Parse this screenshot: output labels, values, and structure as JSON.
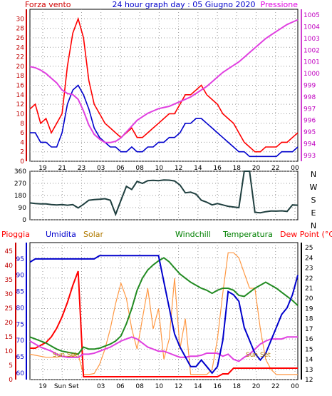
{
  "chart_data": [
    {
      "type": "line",
      "title": "24 hour graph day : 05 Giugno 2020",
      "left_axis_label": "Forza vento",
      "right_axis_label": "Pressione",
      "x_tick_labels": [
        "19",
        "21",
        "23",
        "03",
        "06",
        "08",
        "10",
        "12",
        "14",
        "16",
        "18",
        "20",
        "22",
        "00"
      ],
      "x": [
        0,
        2,
        4,
        6,
        8,
        10,
        12,
        14,
        16,
        18,
        20,
        22,
        24,
        26,
        28,
        30,
        32,
        34,
        36,
        38,
        40,
        42,
        44,
        46,
        48,
        50,
        52,
        54,
        56,
        58,
        60,
        62,
        64,
        66,
        68,
        70,
        72,
        74,
        76,
        78,
        80,
        82,
        84,
        86,
        88,
        90,
        92,
        94,
        96,
        98,
        100
      ],
      "ylim_left": [
        0,
        32
      ],
      "y_ticks_left": [
        0,
        2,
        4,
        6,
        8,
        10,
        12,
        14,
        16,
        18,
        20,
        22,
        24,
        26,
        28,
        30
      ],
      "ylim_right": [
        992.5,
        1005.5
      ],
      "y_ticks_right": [
        993,
        994,
        995,
        996,
        997,
        998,
        999,
        1000,
        1001,
        1002,
        1003,
        1004,
        1005
      ],
      "colors": {
        "gust": "#ff0000",
        "wind": "#0000cc",
        "pressure": "#e040e0"
      },
      "series": [
        {
          "key": "gust",
          "axis": "left",
          "values": [
            11,
            12,
            8,
            9,
            6,
            8,
            10,
            20,
            27,
            30,
            26,
            17,
            12,
            10,
            8,
            7,
            6,
            5,
            6,
            7,
            5,
            5,
            6,
            7,
            8,
            9,
            10,
            10,
            12,
            14,
            14,
            15,
            16,
            14,
            13,
            12,
            10,
            9,
            8,
            6,
            4,
            3,
            2,
            2,
            3,
            3,
            3,
            4,
            4,
            5,
            6
          ]
        },
        {
          "key": "wind",
          "axis": "left",
          "values": [
            6,
            6,
            4,
            4,
            3,
            3,
            6,
            12,
            15,
            16,
            14,
            11,
            7,
            5,
            4,
            3,
            3,
            2,
            2,
            3,
            2,
            2,
            3,
            3,
            4,
            4,
            5,
            5,
            6,
            8,
            8,
            9,
            9,
            8,
            7,
            6,
            5,
            4,
            3,
            2,
            2,
            1,
            1,
            1,
            1,
            1,
            1,
            2,
            2,
            2,
            3
          ]
        },
        {
          "key": "pressure",
          "axis": "right",
          "values": [
            1000.6,
            1000.5,
            1000.3,
            1000.0,
            999.6,
            999.2,
            998.6,
            998.3,
            998.2,
            997.8,
            996.8,
            995.6,
            994.8,
            994.4,
            994.1,
            994.1,
            994.2,
            994.5,
            995.0,
            995.5,
            996.0,
            996.3,
            996.6,
            996.8,
            997.0,
            997.1,
            997.2,
            997.4,
            997.6,
            997.8,
            998.0,
            998.3,
            998.6,
            998.9,
            999.3,
            999.7,
            1000.1,
            1000.4,
            1000.7,
            1001.0,
            1001.4,
            1001.8,
            1002.2,
            1002.6,
            1003.0,
            1003.3,
            1003.6,
            1003.9,
            1004.2,
            1004.4,
            1004.6
          ]
        }
      ]
    },
    {
      "type": "line",
      "y_tick_labels": [
        "0",
        "90",
        "180",
        "270",
        "360"
      ],
      "ylim": [
        0,
        360
      ],
      "right_labels": [
        "N",
        "W",
        "S",
        "E",
        "N"
      ],
      "color": "#1f3f3f",
      "x_tick_labels": [
        "19",
        "21",
        "23",
        "03",
        "06",
        "08",
        "10",
        "12",
        "14",
        "16",
        "18",
        "20",
        "22",
        "00"
      ],
      "x": [
        0,
        2,
        4,
        6,
        8,
        10,
        12,
        14,
        16,
        18,
        20,
        22,
        24,
        26,
        28,
        30,
        32,
        34,
        36,
        38,
        40,
        42,
        44,
        46,
        48,
        50,
        52,
        54,
        56,
        58,
        60,
        62,
        64,
        66,
        68,
        70,
        72,
        74,
        76,
        78,
        80,
        82,
        84,
        86,
        88,
        90,
        92,
        94,
        96,
        98,
        100
      ],
      "values": [
        125,
        120,
        118,
        118,
        112,
        110,
        112,
        108,
        112,
        88,
        115,
        145,
        150,
        152,
        156,
        145,
        40,
        145,
        248,
        225,
        285,
        270,
        290,
        292,
        290,
        295,
        294,
        288,
        258,
        200,
        205,
        190,
        145,
        130,
        110,
        120,
        110,
        100,
        95,
        90,
        360,
        360,
        55,
        52,
        60,
        65,
        64,
        66,
        62,
        110,
        108
      ]
    },
    {
      "type": "line",
      "labels": [
        "Pioggia",
        "Umidita",
        "Solar",
        "Windchill",
        "Temperatura",
        "Dew Point (°C)"
      ],
      "colors": {
        "pioggia": "#ff0000",
        "umidita": "#0000cc",
        "solar": "#ff9944",
        "windchill": "#008000",
        "temperatura": "#228b22",
        "dewpoint": "#e040e0"
      },
      "y_ticks_left_outer": [
        0,
        5,
        10,
        15,
        20,
        25,
        30,
        35,
        40,
        45
      ],
      "y_ticks_left_inner": [
        60,
        65,
        70,
        75,
        80,
        85,
        90,
        95
      ],
      "y_ticks_right": [
        12,
        13,
        14,
        15,
        16,
        17,
        18,
        19,
        20,
        21,
        22,
        23,
        24,
        25
      ],
      "ylim_right": [
        12,
        25.5
      ],
      "ylim_umidita": [
        58,
        100
      ],
      "ylim_pioggia": [
        0,
        48
      ],
      "x_tick_labels": [
        "19",
        "Sun Set",
        "03",
        "06",
        "08",
        "10",
        "12",
        "14",
        "16",
        "18",
        "20",
        "22",
        "00"
      ],
      "annotations": [
        "Sun Set",
        "Sun Set"
      ],
      "x": [
        0,
        2,
        4,
        6,
        8,
        10,
        12,
        14,
        16,
        18,
        20,
        22,
        24,
        26,
        28,
        30,
        32,
        34,
        36,
        38,
        40,
        42,
        44,
        46,
        48,
        50,
        52,
        54,
        56,
        58,
        60,
        62,
        64,
        66,
        68,
        70,
        72,
        74,
        76,
        78,
        80,
        82,
        84,
        86,
        88,
        90,
        92,
        94,
        96,
        98,
        100
      ],
      "series": [
        {
          "key": "umidita",
          "axis": "umidita",
          "values": [
            94,
            95,
            95,
            95,
            95,
            95,
            95,
            95,
            95,
            95,
            95,
            95,
            95,
            96,
            96,
            96,
            96,
            96,
            96,
            96,
            96,
            96,
            96,
            96,
            96,
            88,
            80,
            72,
            68,
            65,
            62,
            62,
            64,
            62,
            60,
            62,
            70,
            85,
            84,
            82,
            74,
            70,
            66,
            64,
            66,
            70,
            74,
            78,
            80,
            84,
            90
          ]
        },
        {
          "key": "pioggia",
          "axis": "pioggia",
          "values": [
            11,
            11,
            12,
            13,
            15,
            18,
            22,
            27,
            33,
            38,
            1,
            1,
            1,
            1,
            1,
            1,
            1,
            1,
            1,
            1,
            1,
            1,
            1,
            1,
            1,
            1,
            1,
            1,
            1,
            1,
            1,
            1,
            1,
            1,
            1,
            1,
            2,
            2,
            4,
            4,
            4,
            4,
            4,
            4,
            4,
            4,
            4,
            4,
            4,
            4,
            4
          ]
        },
        {
          "key": "temperatura",
          "axis": "right",
          "values": [
            16.2,
            16.0,
            15.8,
            15.6,
            15.3,
            15.0,
            14.8,
            14.7,
            14.6,
            14.5,
            15.2,
            15.0,
            15.0,
            15.1,
            15.3,
            15.5,
            15.8,
            16.3,
            17.5,
            19.0,
            20.8,
            22.0,
            22.8,
            23.3,
            23.7,
            24.0,
            23.6,
            23.0,
            22.4,
            22.0,
            21.6,
            21.3,
            21.0,
            20.8,
            20.5,
            20.8,
            21.0,
            21.0,
            20.8,
            20.3,
            20.2,
            20.6,
            21.0,
            21.3,
            21.6,
            21.3,
            21.0,
            20.6,
            20.2,
            19.8,
            19.3
          ]
        },
        {
          "key": "dewpoint",
          "axis": "right",
          "values": [
            15.8,
            15.5,
            15.2,
            15.0,
            14.8,
            14.5,
            14.3,
            14.2,
            14.2,
            14.2,
            14.5,
            14.5,
            14.6,
            14.8,
            15.0,
            15.2,
            15.5,
            15.8,
            16.0,
            16.2,
            16.0,
            15.6,
            15.2,
            15.0,
            14.8,
            14.8,
            14.6,
            14.4,
            14.2,
            14.2,
            14.3,
            14.3,
            14.4,
            14.6,
            14.6,
            14.6,
            14.3,
            14.5,
            14.0,
            13.8,
            14.2,
            14.5,
            15.0,
            15.5,
            15.8,
            16.0,
            16.0,
            16.0,
            16.2,
            16.2,
            16.2
          ]
        },
        {
          "key": "solar",
          "axis": "right",
          "values": [
            14.5,
            14.4,
            14.3,
            14.2,
            14.2,
            14.2,
            14.3,
            14.3,
            14.3,
            14.5,
            12.5,
            12.5,
            12.6,
            13.5,
            15.0,
            17.0,
            19.5,
            21.5,
            20.0,
            17.0,
            15.0,
            18.0,
            21.0,
            17.0,
            19.0,
            14.0,
            16.0,
            22.0,
            15.0,
            18.0,
            12.5,
            12.5,
            12.5,
            12.5,
            13.0,
            16.0,
            20.5,
            24.5,
            24.5,
            24.0,
            22.5,
            21.0,
            21.0,
            17.0,
            14.0,
            13.0,
            12.5,
            12.5,
            12.5,
            12.5,
            12.5
          ]
        }
      ]
    }
  ]
}
